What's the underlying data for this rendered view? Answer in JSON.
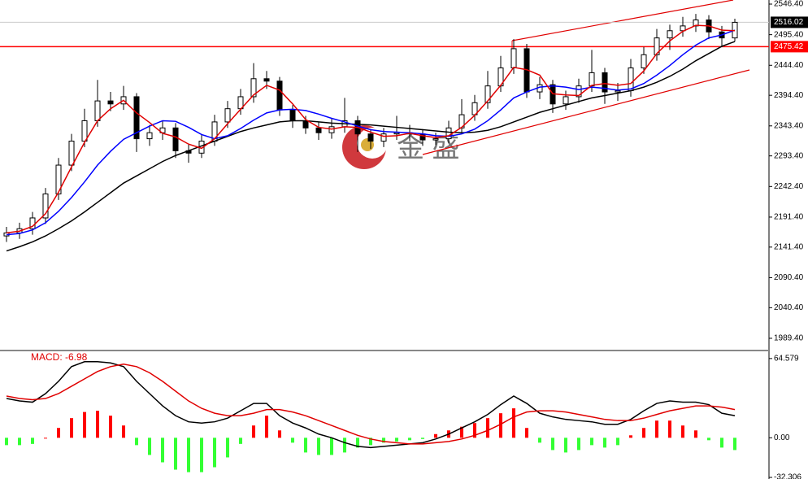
{
  "chart_data": [
    {
      "type": "candlestick",
      "ylim": [
        1970.4,
        2553.2
      ],
      "yticks": [
        {
          "value": 2546.4,
          "label": "2546.40"
        },
        {
          "value": 2495.4,
          "label": "2495.40"
        },
        {
          "value": 2444.4,
          "label": "2444.40"
        },
        {
          "value": 2394.4,
          "label": "2394.40"
        },
        {
          "value": 2343.4,
          "label": "2343.40"
        },
        {
          "value": 2293.4,
          "label": "2293.40"
        },
        {
          "value": 2242.4,
          "label": "2242.40"
        },
        {
          "value": 2191.4,
          "label": "2191.40"
        },
        {
          "value": 2141.4,
          "label": "2141.40"
        },
        {
          "value": 2090.4,
          "label": "2090.40"
        },
        {
          "value": 2040.4,
          "label": "2040.40"
        },
        {
          "value": 1989.4,
          "label": "1989.40"
        }
      ],
      "current_price": 2516.02,
      "level": 2475.42,
      "level_color": "#ff0000",
      "watermark": "金 盛",
      "open": [
        2160,
        2165,
        2172,
        2190,
        2230,
        2278,
        2318,
        2352,
        2385,
        2380,
        2392,
        2322,
        2332,
        2340,
        2302,
        2298,
        2318,
        2350,
        2372,
        2392,
        2422,
        2418,
        2370,
        2352,
        2340,
        2332,
        2342,
        2352,
        2330,
        2318,
        2330,
        2332,
        2330,
        2320,
        2322,
        2340,
        2362,
        2382,
        2410,
        2440,
        2472,
        2400,
        2412,
        2380,
        2392,
        2410,
        2432,
        2400,
        2402,
        2440,
        2462,
        2490,
        2502,
        2510,
        2520,
        2500,
        2490
      ],
      "high": [
        2175,
        2182,
        2200,
        2240,
        2290,
        2330,
        2372,
        2420,
        2400,
        2410,
        2398,
        2345,
        2352,
        2348,
        2312,
        2328,
        2362,
        2385,
        2405,
        2448,
        2435,
        2425,
        2378,
        2360,
        2350,
        2355,
        2390,
        2360,
        2338,
        2340,
        2360,
        2345,
        2338,
        2332,
        2352,
        2388,
        2395,
        2435,
        2460,
        2488,
        2480,
        2425,
        2420,
        2402,
        2422,
        2470,
        2440,
        2415,
        2455,
        2475,
        2505,
        2512,
        2525,
        2530,
        2528,
        2510,
        2522
      ],
      "low": [
        2150,
        2155,
        2162,
        2180,
        2220,
        2268,
        2308,
        2342,
        2368,
        2370,
        2300,
        2310,
        2320,
        2290,
        2282,
        2290,
        2310,
        2340,
        2362,
        2382,
        2405,
        2360,
        2340,
        2330,
        2320,
        2322,
        2332,
        2300,
        2305,
        2308,
        2320,
        2318,
        2310,
        2312,
        2315,
        2332,
        2352,
        2372,
        2400,
        2430,
        2390,
        2388,
        2365,
        2370,
        2382,
        2400,
        2380,
        2385,
        2392,
        2430,
        2452,
        2470,
        2492,
        2500,
        2488,
        2475,
        2484
      ],
      "close": [
        2165,
        2172,
        2190,
        2230,
        2278,
        2318,
        2352,
        2385,
        2380,
        2392,
        2322,
        2332,
        2340,
        2302,
        2298,
        2318,
        2350,
        2372,
        2392,
        2422,
        2418,
        2370,
        2352,
        2340,
        2332,
        2342,
        2352,
        2330,
        2318,
        2330,
        2332,
        2330,
        2320,
        2322,
        2340,
        2362,
        2382,
        2410,
        2440,
        2472,
        2400,
        2412,
        2380,
        2392,
        2410,
        2432,
        2400,
        2402,
        2440,
        2462,
        2490,
        2502,
        2510,
        2520,
        2500,
        2490,
        2516.02
      ],
      "series": [
        {
          "color": "#000000",
          "values": [
            2135,
            2142,
            2150,
            2160,
            2172,
            2185,
            2200,
            2216,
            2232,
            2248,
            2260,
            2272,
            2284,
            2294,
            2302,
            2310,
            2318,
            2326,
            2334,
            2340,
            2345,
            2350,
            2352,
            2352,
            2350,
            2348,
            2347,
            2346,
            2345,
            2343,
            2341,
            2339,
            2337,
            2335,
            2333,
            2332,
            2333,
            2336,
            2342,
            2350,
            2358,
            2366,
            2372,
            2378,
            2384,
            2390,
            2394,
            2398,
            2402,
            2408,
            2416,
            2426,
            2438,
            2452,
            2464,
            2476,
            2484
          ]
        },
        {
          "color": "#0000ff",
          "values": [
            2162,
            2164,
            2170,
            2182,
            2201,
            2224,
            2250,
            2278,
            2301,
            2321,
            2332,
            2343,
            2352,
            2351,
            2341,
            2329,
            2322,
            2327,
            2339,
            2353,
            2365,
            2370,
            2371,
            2369,
            2363,
            2356,
            2350,
            2343,
            2337,
            2334,
            2333,
            2332,
            2330,
            2327,
            2326,
            2330,
            2338,
            2352,
            2370,
            2390,
            2400,
            2408,
            2410,
            2408,
            2404,
            2408,
            2406,
            2403,
            2405,
            2414,
            2428,
            2444,
            2462,
            2478,
            2490,
            2495,
            2503
          ]
        },
        {
          "color": "#e00000",
          "values": [
            2165,
            2168,
            2176,
            2197,
            2233,
            2275,
            2316,
            2352,
            2372,
            2386,
            2365,
            2349,
            2331,
            2325,
            2313,
            2306,
            2322,
            2347,
            2371,
            2395,
            2411,
            2403,
            2380,
            2354,
            2341,
            2338,
            2342,
            2341,
            2333,
            2326,
            2327,
            2331,
            2327,
            2324,
            2327,
            2341,
            2361,
            2385,
            2411,
            2441,
            2437,
            2428,
            2397,
            2395,
            2394,
            2411,
            2414,
            2411,
            2414,
            2435,
            2464,
            2485,
            2501,
            2511,
            2510,
            2503,
            2502
          ]
        }
      ]
    },
    {
      "type": "macd",
      "title": "MACD: -6.98",
      "ylim": [
        -33.6,
        69.8
      ],
      "yticks": [
        64.579,
        {
          "value": 0,
          "label": "0.00"
        },
        -32.306
      ],
      "pos_color": "#ff0000",
      "neg_color": "#33ff33",
      "histogram": [
        -6,
        -6,
        -5,
        0,
        8,
        16,
        21,
        22,
        18,
        10,
        -6,
        -14,
        -20,
        -26,
        -28,
        -28,
        -24,
        -16,
        -5,
        10,
        18,
        6,
        -4,
        -12,
        -14,
        -14,
        -12,
        -8,
        -6,
        -4,
        -3,
        -2,
        -1,
        3,
        6,
        9,
        12,
        16,
        20,
        24,
        8,
        -4,
        -10,
        -12,
        -10,
        -6,
        -8,
        -6,
        2,
        8,
        14,
        14,
        10,
        6,
        -2,
        -8,
        -10
      ],
      "series": [
        {
          "color": "#000000",
          "values": [
            32,
            30,
            29,
            36,
            46,
            58,
            62,
            62,
            61,
            58,
            46,
            36,
            26,
            18,
            13,
            12,
            13,
            16,
            22,
            28,
            28,
            18,
            12,
            8,
            3,
            0,
            -4,
            -7,
            -8,
            -7,
            -6,
            -5,
            -4,
            -1,
            3,
            8,
            13,
            19,
            27,
            34,
            28,
            20,
            17,
            15,
            14,
            13,
            11,
            11,
            15,
            22,
            28,
            30,
            29,
            29,
            27,
            20,
            18
          ]
        },
        {
          "color": "#e00000",
          "values": [
            34,
            32,
            31,
            32,
            36,
            42,
            48,
            54,
            58,
            60,
            58,
            53,
            46,
            38,
            30,
            24,
            20,
            18,
            18,
            20,
            23,
            23,
            21,
            18,
            14,
            10,
            6,
            2,
            -1,
            -3,
            -4,
            -5,
            -5,
            -4,
            -3,
            -1,
            2,
            6,
            11,
            17,
            21,
            22,
            22,
            21,
            19,
            17,
            15,
            14,
            14,
            16,
            19,
            22,
            24,
            26,
            26,
            25,
            23
          ]
        }
      ]
    }
  ]
}
